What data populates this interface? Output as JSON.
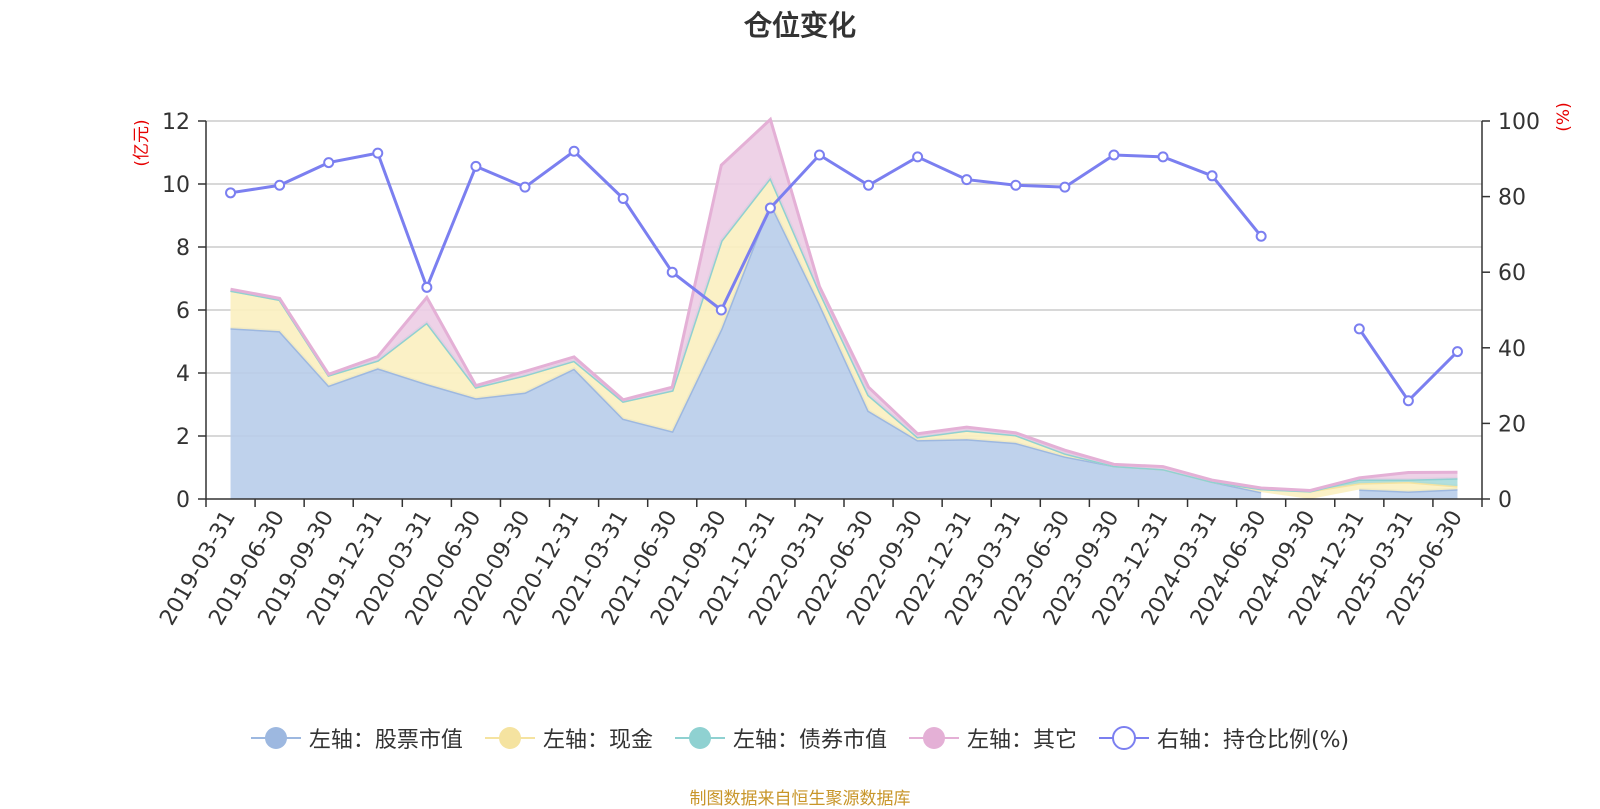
{
  "title": "仓位变化",
  "source_note": "制图数据来自恒生聚源数据库",
  "chart_data": {
    "type": "area",
    "title": "仓位变化",
    "left_axis": {
      "unit_label": "(亿元)",
      "ylim": [
        0,
        12
      ],
      "ticks": [
        "0",
        "2",
        "4",
        "6",
        "8",
        "10",
        "12"
      ]
    },
    "right_axis": {
      "unit_label": "(%)",
      "ylim": [
        0,
        100
      ],
      "ticks": [
        "0",
        "20",
        "40",
        "60",
        "80",
        "100"
      ]
    },
    "grid": true,
    "legend_position": "bottom",
    "categories": [
      "2019-03-31",
      "2019-06-30",
      "2019-09-30",
      "2019-12-31",
      "2020-03-31",
      "2020-06-30",
      "2020-09-30",
      "2020-12-31",
      "2021-03-31",
      "2021-06-30",
      "2021-09-30",
      "2021-12-31",
      "2022-03-31",
      "2022-06-30",
      "2022-09-30",
      "2022-12-31",
      "2023-03-31",
      "2023-06-30",
      "2023-09-30",
      "2023-12-31",
      "2024-03-31",
      "2024-06-30",
      "2024-09-30",
      "2024-12-31",
      "2025-03-31",
      "2025-06-30"
    ],
    "series": [
      {
        "name": "左轴：股票市值",
        "axis": "left",
        "kind": "stacked-area",
        "color": "#9db8e0",
        "fill": "#b8cdea",
        "values": [
          5.42,
          5.33,
          3.6,
          4.15,
          3.65,
          3.2,
          3.38,
          4.14,
          2.55,
          2.15,
          5.4,
          9.4,
          6.2,
          2.8,
          1.87,
          1.9,
          1.78,
          1.35,
          1.05,
          0.95,
          0.55,
          0.22,
          null,
          0.3,
          0.24,
          0.31
        ]
      },
      {
        "name": "左轴：现金",
        "axis": "left",
        "kind": "stacked-area",
        "color": "#f5e3a0",
        "fill": "#fbefc0",
        "values": [
          1.2,
          1.0,
          0.33,
          0.25,
          1.95,
          0.35,
          0.55,
          0.25,
          0.55,
          1.3,
          2.8,
          0.8,
          0.4,
          0.5,
          0.1,
          0.28,
          0.25,
          0.1,
          0.0,
          0.0,
          0.0,
          0.1,
          0.25,
          0.2,
          0.3,
          0.1
        ]
      },
      {
        "name": "左轴：债券市值",
        "axis": "left",
        "kind": "stacked-area",
        "color": "#8fd1d1",
        "fill": "#a8dcdc",
        "values": [
          0,
          0,
          0,
          0,
          0,
          0,
          0,
          0,
          0,
          0,
          0,
          0,
          0,
          0,
          0,
          0,
          0,
          0,
          0,
          0,
          0,
          0,
          0,
          0.12,
          0.08,
          0.25
        ]
      },
      {
        "name": "左轴：其它",
        "axis": "left",
        "kind": "stacked-area",
        "color": "#e4b0d6",
        "fill": "#eccde4",
        "values": [
          0.04,
          0.04,
          0.03,
          0.12,
          0.8,
          0.05,
          0.12,
          0.12,
          0.05,
          0.1,
          2.4,
          1.85,
          0.15,
          0.25,
          0.1,
          0.1,
          0.07,
          0.1,
          0.05,
          0.08,
          0.05,
          0.03,
          0.02,
          0.05,
          0.22,
          0.19
        ]
      },
      {
        "name": "右轴：持仓比例(%)",
        "axis": "right",
        "kind": "line",
        "color": "#7b7ff0",
        "values": [
          81,
          83,
          89,
          91.5,
          56,
          88,
          82.5,
          92,
          79.5,
          60,
          50,
          77,
          91,
          83,
          90.5,
          84.5,
          83,
          82.5,
          91,
          90.5,
          85.5,
          69.5,
          null,
          45,
          26,
          39
        ]
      }
    ]
  }
}
